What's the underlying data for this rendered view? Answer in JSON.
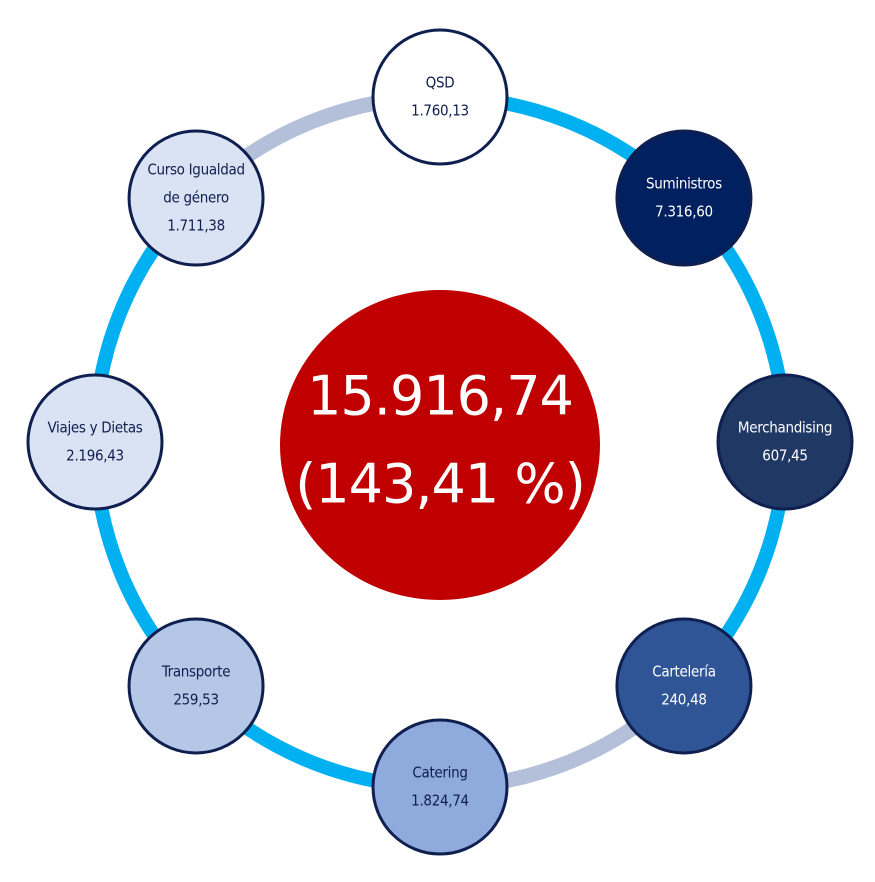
{
  "center": {
    "total": "15.916,74",
    "percent": "(143,41 %)"
  },
  "nodes": [
    {
      "label_lines": [
        "QSD"
      ],
      "value": "1.760,13"
    },
    {
      "label_lines": [
        "Suministros"
      ],
      "value": "7.316,60"
    },
    {
      "label_lines": [
        "Merchandising"
      ],
      "value": "607,45"
    },
    {
      "label_lines": [
        "Cartelería"
      ],
      "value": "240,48"
    },
    {
      "label_lines": [
        "Catering"
      ],
      "value": "1.824,74"
    },
    {
      "label_lines": [
        "Transporte"
      ],
      "value": "259,53"
    },
    {
      "label_lines": [
        "Viajes y Dietas"
      ],
      "value": "2.196,43"
    },
    {
      "label_lines": [
        "Curso Igualdad",
        "de género"
      ],
      "value": "1.711,38"
    }
  ]
}
